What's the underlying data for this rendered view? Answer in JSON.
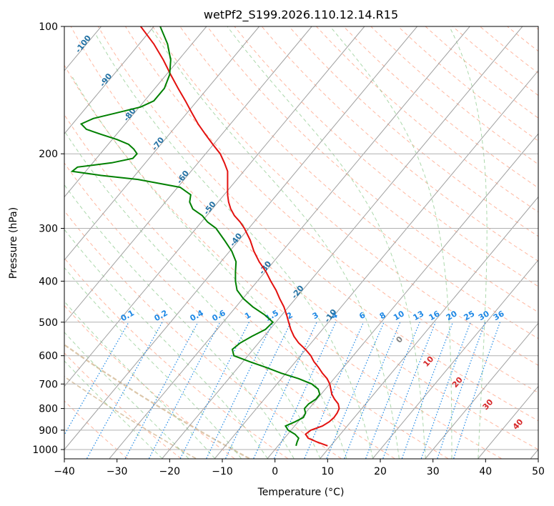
{
  "chart_data": {
    "type": "line",
    "title": "wetPf2_S199.2026.110.12.14.R15",
    "xlabel": "Temperature (°C)",
    "ylabel": "Pressure (hPa)",
    "xlim": [
      -40,
      50
    ],
    "ylim_hpa": [
      1050,
      100
    ],
    "x_ticks": [
      -40,
      -30,
      -20,
      -10,
      0,
      10,
      20,
      30,
      40,
      50
    ],
    "x_tick_labels": [
      "−40",
      "−30",
      "−20",
      "−10",
      "0",
      "10",
      "20",
      "30",
      "40",
      "50"
    ],
    "y_ticks": [
      1000,
      900,
      800,
      700,
      600,
      500,
      400,
      300,
      200,
      100
    ],
    "y_tick_labels": [
      "1000",
      "900",
      "800",
      "700",
      "600",
      "500",
      "400",
      "300",
      "200",
      "100"
    ],
    "skew_deg_per_decade": 67,
    "colors": {
      "temperature": "#e3110f",
      "dewpoint": "#008000",
      "grid": "#b0b0b0",
      "isotherm": "#a0a0a0",
      "dry_adiabat": "#ff9f80",
      "moist_adiabat": "#88c888",
      "mixing_ratio": "#1e88e5",
      "height_label": "#2472a4",
      "adiabat_label": "#d62728",
      "dry_adiabat_thick": "#d8c0a0"
    },
    "series": [
      {
        "name": "Temperature",
        "pressure": [
          980,
          960,
          940,
          920,
          900,
          880,
          860,
          840,
          820,
          800,
          780,
          760,
          740,
          720,
          700,
          680,
          660,
          640,
          620,
          600,
          580,
          560,
          540,
          520,
          500,
          480,
          460,
          440,
          420,
          400,
          380,
          360,
          340,
          320,
          300,
          290,
          280,
          270,
          260,
          250,
          240,
          230,
          220,
          210,
          200,
          190,
          180,
          170,
          160,
          150,
          140,
          130,
          120,
          110,
          100
        ],
        "values": [
          10.0,
          8.0,
          6.3,
          5.8,
          6.8,
          9.0,
          10.3,
          11.2,
          11.8,
          12.2,
          12.0,
          11.3,
          10.8,
          10.6,
          10.4,
          9.9,
          9.0,
          8.3,
          7.4,
          6.8,
          5.8,
          4.5,
          3.6,
          3.0,
          2.6,
          2.2,
          1.7,
          0.9,
          0.2,
          -0.8,
          -1.7,
          -3.0,
          -4.0,
          -4.7,
          -5.8,
          -6.6,
          -7.7,
          -8.4,
          -8.8,
          -9.0,
          -9.0,
          -9.0,
          -9.0,
          -9.6,
          -10.4,
          -11.8,
          -13.2,
          -14.6,
          -15.8,
          -17.0,
          -18.4,
          -19.8,
          -21.2,
          -23.0,
          -25.5
        ]
      },
      {
        "name": "Dewpoint",
        "pressure": [
          980,
          960,
          940,
          920,
          900,
          880,
          860,
          840,
          820,
          800,
          780,
          760,
          740,
          720,
          700,
          680,
          660,
          640,
          620,
          600,
          580,
          560,
          540,
          520,
          500,
          480,
          460,
          440,
          420,
          400,
          380,
          360,
          340,
          320,
          300,
          290,
          280,
          270,
          260,
          250,
          240,
          230,
          225,
          220,
          215,
          210,
          205,
          200,
          195,
          190,
          185,
          180,
          175,
          170,
          165,
          160,
          155,
          150,
          140,
          130,
          120,
          110,
          100
        ],
        "values": [
          4.0,
          4.2,
          4.5,
          3.8,
          2.5,
          2.0,
          3.8,
          5.4,
          5.8,
          5.6,
          6.4,
          7.8,
          8.5,
          8.2,
          7.0,
          4.5,
          1.2,
          -1.6,
          -4.8,
          -7.8,
          -8.1,
          -6.6,
          -4.4,
          -1.8,
          -0.4,
          -2.0,
          -4.2,
          -6.0,
          -7.2,
          -7.5,
          -7.5,
          -7.4,
          -8.2,
          -9.6,
          -11.2,
          -12.8,
          -13.8,
          -15.6,
          -16.2,
          -16.0,
          -18.0,
          -26.0,
          -33.0,
          -38.5,
          -37.5,
          -31.0,
          -27.0,
          -26.2,
          -26.8,
          -27.8,
          -30.0,
          -33.0,
          -35.8,
          -36.8,
          -34.5,
          -30.0,
          -25.5,
          -23.0,
          -21.0,
          -20.0,
          -19.8,
          -20.4,
          -21.8
        ]
      }
    ],
    "height_labels": [
      {
        "text": "-100",
        "p": 111
      },
      {
        "text": "-90",
        "p": 135
      },
      {
        "text": "-80",
        "p": 163
      },
      {
        "text": "-70",
        "p": 191
      },
      {
        "text": "-60",
        "p": 229
      },
      {
        "text": "-50",
        "p": 271
      },
      {
        "text": "-40",
        "p": 322
      },
      {
        "text": "-30",
        "p": 375
      },
      {
        "text": "-20",
        "p": 428
      },
      {
        "text": "-10",
        "p": 487
      }
    ],
    "mixing_ratio_labels": [
      "0.1",
      "0.2",
      "0.4",
      "0.6",
      "1",
      "1.5",
      "2",
      "3",
      "4",
      "6",
      "8",
      "10",
      "13",
      "16",
      "20",
      "25",
      "30",
      "36"
    ],
    "mixing_ratio_values": [
      0.1,
      0.2,
      0.4,
      0.6,
      1,
      1.5,
      2,
      3,
      4,
      6,
      8,
      10,
      13,
      16,
      20,
      25,
      30,
      36
    ],
    "adiabat_labels": [
      {
        "text": "0",
        "x": 24.0,
        "p": 555
      },
      {
        "text": "10",
        "x": 29.5,
        "p": 625
      },
      {
        "text": "20",
        "x": 35.0,
        "p": 700
      },
      {
        "text": "30",
        "x": 40.8,
        "p": 790
      },
      {
        "text": "40",
        "x": 46.5,
        "p": 880
      }
    ]
  }
}
